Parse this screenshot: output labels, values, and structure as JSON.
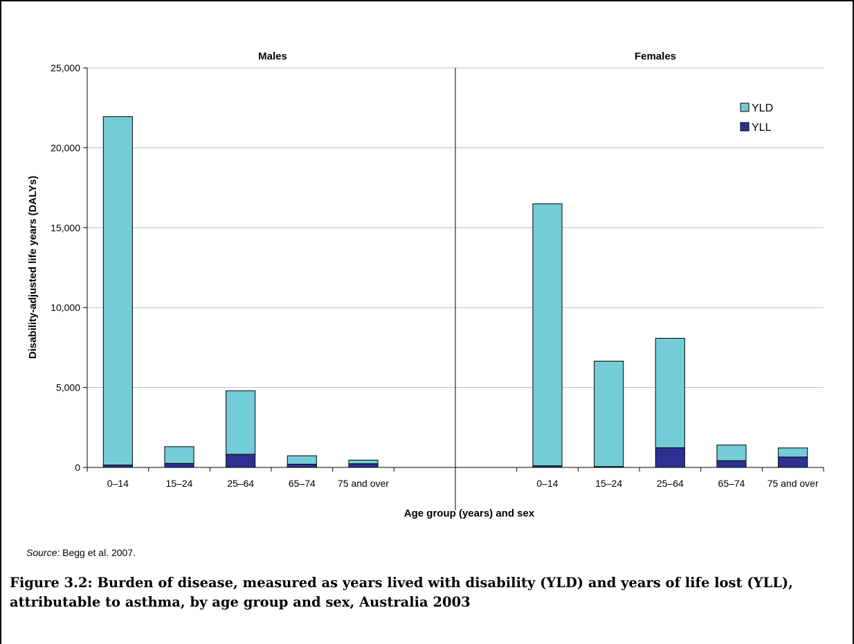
{
  "chart_data": {
    "type": "bar",
    "stacked": true,
    "panels": [
      {
        "title": "Males",
        "categories": [
          "0–14",
          "15–24",
          "25–64",
          "65–74",
          "75 and over"
        ],
        "series": [
          {
            "name": "YLL",
            "values": [
              150,
              250,
              820,
              200,
              230
            ]
          },
          {
            "name": "YLD",
            "values": [
              21800,
              1050,
              3980,
              530,
              230
            ]
          }
        ]
      },
      {
        "title": "Females",
        "categories": [
          "0–14",
          "15–24",
          "25–64",
          "65–74",
          "75 and over"
        ],
        "series": [
          {
            "name": "YLL",
            "values": [
              100,
              50,
              1230,
              420,
              650
            ]
          },
          {
            "name": "YLD",
            "values": [
              16400,
              6600,
              6850,
              980,
              570
            ]
          }
        ]
      }
    ],
    "ylabel": "Disability-adjusted life years (DALYs)",
    "xlabel": "Age group (years) and sex",
    "ylim": [
      0,
      25000
    ],
    "yticks": [
      "0",
      "5,000",
      "10,000",
      "15,000",
      "20,000",
      "25,000"
    ],
    "ytick_values": [
      0,
      5000,
      10000,
      15000,
      20000,
      25000
    ],
    "legend": {
      "placement": "top-right",
      "entries": [
        "YLD",
        "YLL"
      ]
    },
    "grid": true,
    "colors": {
      "YLD": "#74ccd8",
      "YLL": "#2e3192"
    }
  },
  "source": {
    "label": "Source:",
    "text": " Begg et al. 2007."
  },
  "caption": "Figure 3.2: Burden of disease, measured as years lived with disability (YLD) and years of life lost (YLL), attributable to asthma, by age group and sex, Australia 2003"
}
